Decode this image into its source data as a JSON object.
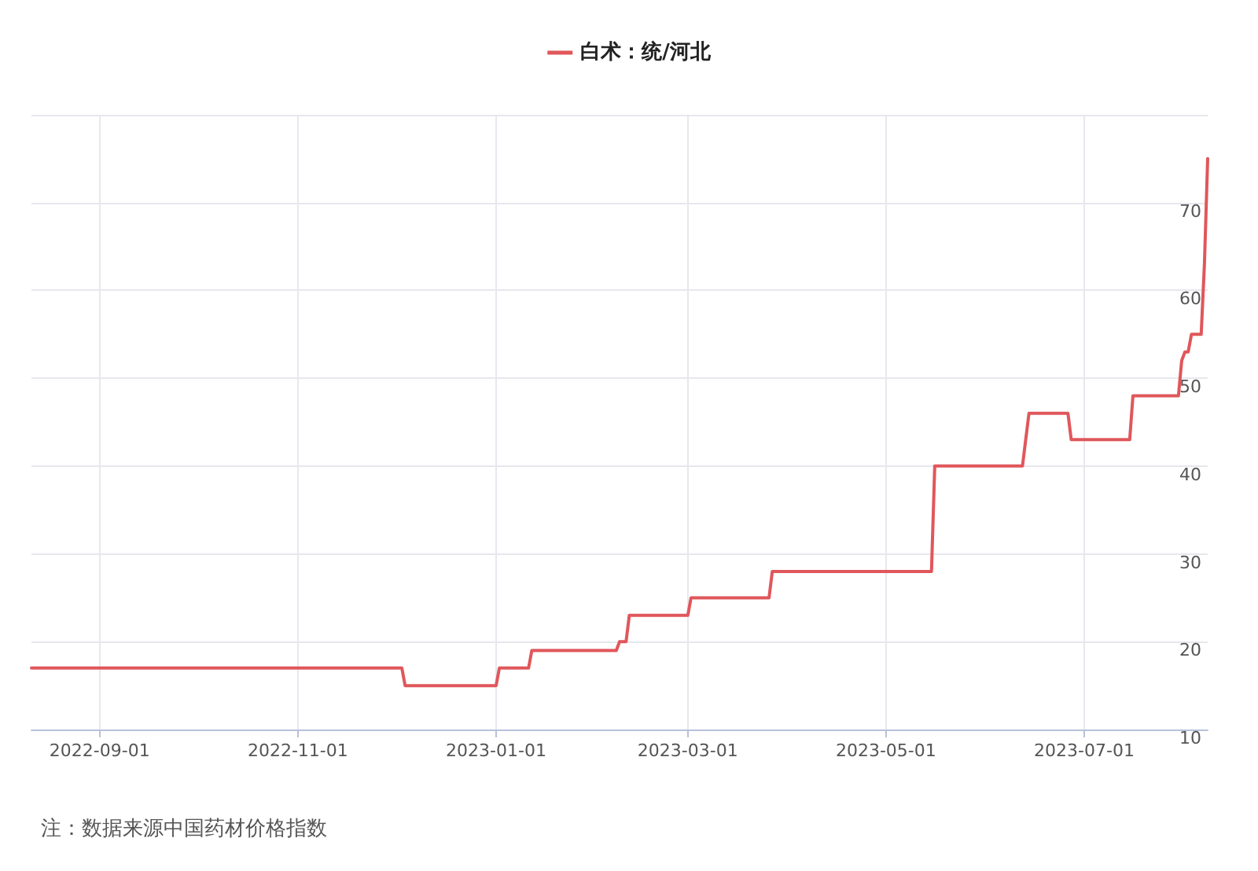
{
  "chart_data": {
    "type": "line",
    "x": [
      "2022-08-11",
      "2022-12-03",
      "2022-12-04",
      "2023-01-01",
      "2023-01-02",
      "2023-01-11",
      "2023-01-12",
      "2023-02-07",
      "2023-02-08",
      "2023-02-10",
      "2023-02-11",
      "2023-03-01",
      "2023-03-02",
      "2023-03-26",
      "2023-03-27",
      "2023-05-15",
      "2023-05-16",
      "2023-06-12",
      "2023-06-14",
      "2023-06-26",
      "2023-06-27",
      "2023-07-15",
      "2023-07-16",
      "2023-07-30",
      "2023-07-31",
      "2023-08-01",
      "2023-08-02",
      "2023-08-03",
      "2023-08-06",
      "2023-08-07",
      "2023-08-08"
    ],
    "series": [
      {
        "name": "白术：统/河北",
        "color": "#e0575b",
        "values": [
          17,
          17,
          15,
          15,
          17,
          17,
          19,
          19,
          20,
          20,
          23,
          23,
          25,
          25,
          28,
          28,
          40,
          40,
          46,
          46,
          43,
          43,
          48,
          48,
          52,
          53,
          53,
          55,
          55,
          63,
          75
        ]
      }
    ],
    "xlim": [
      "2022-08-11",
      "2023-08-08"
    ],
    "xticks": [
      "2022-09-01",
      "2022-11-01",
      "2023-01-01",
      "2023-03-01",
      "2023-05-01",
      "2023-07-01"
    ],
    "ylim": [
      10,
      80
    ],
    "yticks": [
      10,
      20,
      30,
      40,
      50,
      60,
      70,
      {
        "value": 80,
        "label": null
      }
    ],
    "grid": true,
    "legend": "top",
    "marker": "none",
    "line_style": "solid",
    "annotations": [
      "注：数据来源中国药材价格指数"
    ]
  }
}
